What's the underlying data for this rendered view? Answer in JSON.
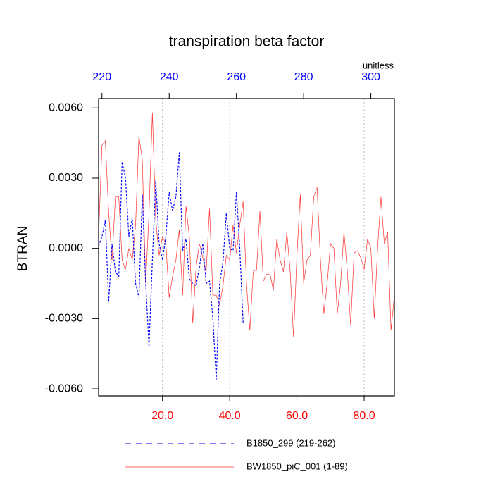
{
  "chart_data": {
    "type": "line",
    "title": "transpiration beta factor",
    "ylabel": "BTRAN",
    "x2label": "unitless",
    "xlim": [
      1,
      89
    ],
    "xticks": [
      {
        "value": 20,
        "label": "20.0"
      },
      {
        "value": 40,
        "label": "40.0"
      },
      {
        "value": 60,
        "label": "60.0"
      },
      {
        "value": 80,
        "label": "80.0"
      }
    ],
    "xtick_color": "#ff0000",
    "x2lim": [
      219,
      307
    ],
    "x2ticks": [
      220,
      240,
      260,
      280,
      300
    ],
    "x2tick_color": "#0000ff",
    "ylim": [
      -0.0063,
      0.0064
    ],
    "yticks": [
      {
        "value": 0.006,
        "label": "0.0060"
      },
      {
        "value": 0.003,
        "label": "0.0030"
      },
      {
        "value": 0,
        "label": "0.0000"
      },
      {
        "value": -0.003,
        "label": "-0.0030"
      },
      {
        "value": -0.006,
        "label": "-0.0060"
      }
    ],
    "xgrid": true,
    "legend": "bottom",
    "series": [
      {
        "name": "B1850_299 (219-262)",
        "color": "#0000ff",
        "dashed": true,
        "x": [
          1,
          2,
          3,
          4,
          5,
          6,
          7,
          8,
          9,
          10,
          11,
          12,
          13,
          14,
          15,
          16,
          17,
          18,
          19,
          20,
          21,
          22,
          23,
          24,
          25,
          26,
          27,
          28,
          29,
          30,
          31,
          32,
          33,
          34,
          35,
          36,
          37,
          38,
          39,
          40,
          41,
          42,
          43,
          44
        ],
        "values": [
          0.0001,
          0.0005,
          0.0012,
          -0.0023,
          0.0002,
          -0.001,
          -0.0012,
          0.0037,
          0.003,
          0.0005,
          0.0013,
          -0.0015,
          -0.0021,
          0.0023,
          -0.0015,
          -0.0042,
          -0.0005,
          0.0029,
          0.0002,
          -0.0005,
          0.0005,
          0.0024,
          0.0016,
          0.0022,
          0.0041,
          -0.0001,
          0.0004,
          -0.0013,
          -0.0015,
          -0.0016,
          -0.0008,
          0.0002,
          -0.0015,
          -0.0014,
          -0.003,
          -0.0056,
          -0.0015,
          -0.0006,
          0.0015,
          0.0,
          -0.0001,
          0.0024,
          0.0,
          -0.0032
        ]
      },
      {
        "name": "BW1850_piC_001 (1-89)",
        "color": "#ff3030",
        "dashed": false,
        "x": [
          1,
          2,
          3,
          4,
          5,
          6,
          7,
          8,
          9,
          10,
          11,
          12,
          13,
          14,
          15,
          16,
          17,
          18,
          19,
          20,
          21,
          22,
          23,
          24,
          25,
          26,
          27,
          28,
          29,
          30,
          31,
          32,
          33,
          34,
          35,
          36,
          37,
          38,
          39,
          40,
          41,
          42,
          43,
          44,
          45,
          46,
          47,
          48,
          49,
          50,
          51,
          52,
          53,
          54,
          55,
          56,
          57,
          58,
          59,
          60,
          61,
          62,
          63,
          64,
          65,
          66,
          67,
          68,
          69,
          70,
          71,
          72,
          73,
          74,
          75,
          76,
          77,
          78,
          79,
          80,
          81,
          82,
          83,
          84,
          85,
          86,
          87,
          88,
          89
        ],
        "values": [
          0.0005,
          0.0044,
          0.0046,
          0.0015,
          -0.0005,
          0.0022,
          0.0022,
          -0.0005,
          -0.0009,
          0.0,
          -0.0005,
          0.001,
          0.0048,
          0.0038,
          -0.0015,
          0.0015,
          0.0058,
          0.0012,
          -0.0003,
          0.0005,
          0.0002,
          -0.0021,
          -0.0012,
          -0.0005,
          0.0008,
          -0.002,
          0.0018,
          0.0005,
          -0.0032,
          -0.0008,
          0.0002,
          -0.0004,
          -0.001,
          0.0017,
          -0.002,
          -0.002,
          -0.0024,
          -0.0016,
          -0.0003,
          -0.0005,
          0.001,
          -0.0002,
          0.001,
          0.002,
          -0.0015,
          -0.0035,
          -0.001,
          -0.0009,
          0.0016,
          -0.0014,
          -0.0011,
          -0.0011,
          -0.0018,
          0.0004,
          -0.0005,
          -0.001,
          0.0007,
          -0.001,
          -0.0038,
          -0.0003,
          0.0023,
          -0.0015,
          -0.0005,
          -0.0003,
          0.0022,
          0.0026,
          -0.0005,
          -0.0028,
          -0.0015,
          0.0002,
          0.0,
          -0.0028,
          -0.0015,
          0.0007,
          -0.001,
          -0.0033,
          -0.0002,
          -0.0001,
          -0.0004,
          -0.0009,
          0.0004,
          0.0,
          -0.003,
          0.0,
          0.0022,
          0.0002,
          0.0007,
          -0.0035,
          -0.002
        ]
      }
    ]
  }
}
